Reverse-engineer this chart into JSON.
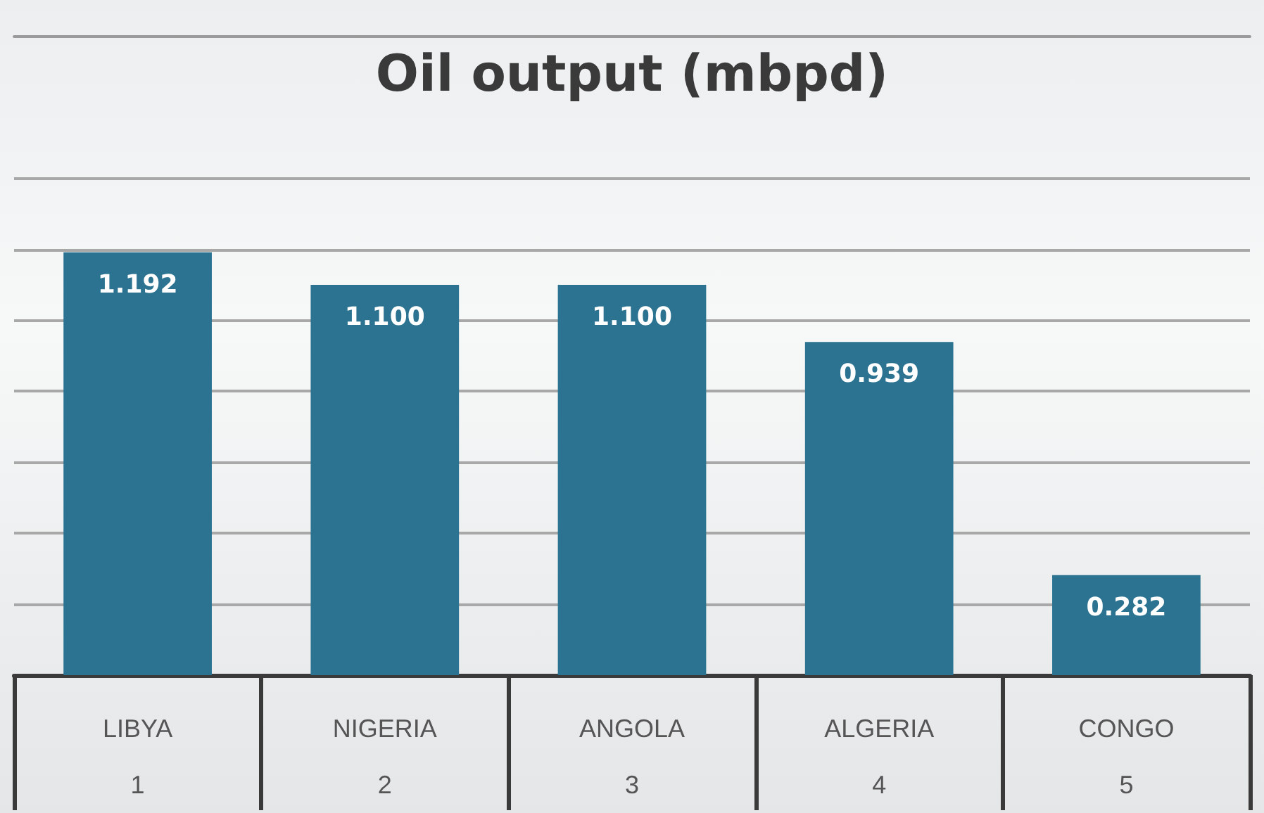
{
  "chart_data": {
    "type": "bar",
    "title": "Oil output (mbpd)",
    "categories": [
      "LIBYA\n1",
      "NIGERIA\n2",
      "ANGOLA\n3",
      "ALGERIA\n4",
      "CONGO\n5"
    ],
    "values": [
      1.192,
      1.1,
      1.1,
      0.939,
      0.282
    ],
    "value_labels": [
      "1.192",
      "1.100",
      "1.100",
      "0.939",
      "0.282"
    ],
    "color": "#2b7391",
    "ylim": [
      0,
      1.8
    ],
    "yticks": [
      {
        "value": 0,
        "label": null
      },
      {
        "value": 0.2,
        "label": null
      },
      {
        "value": 0.4,
        "label": null
      },
      {
        "value": 0.6,
        "label": null
      },
      {
        "value": 0.8,
        "label": null
      },
      {
        "value": 1.0,
        "label": null
      },
      {
        "value": 1.2,
        "label": null
      },
      {
        "value": 1.4,
        "label": null
      }
    ],
    "tick_labels": "x",
    "grid": "y"
  }
}
